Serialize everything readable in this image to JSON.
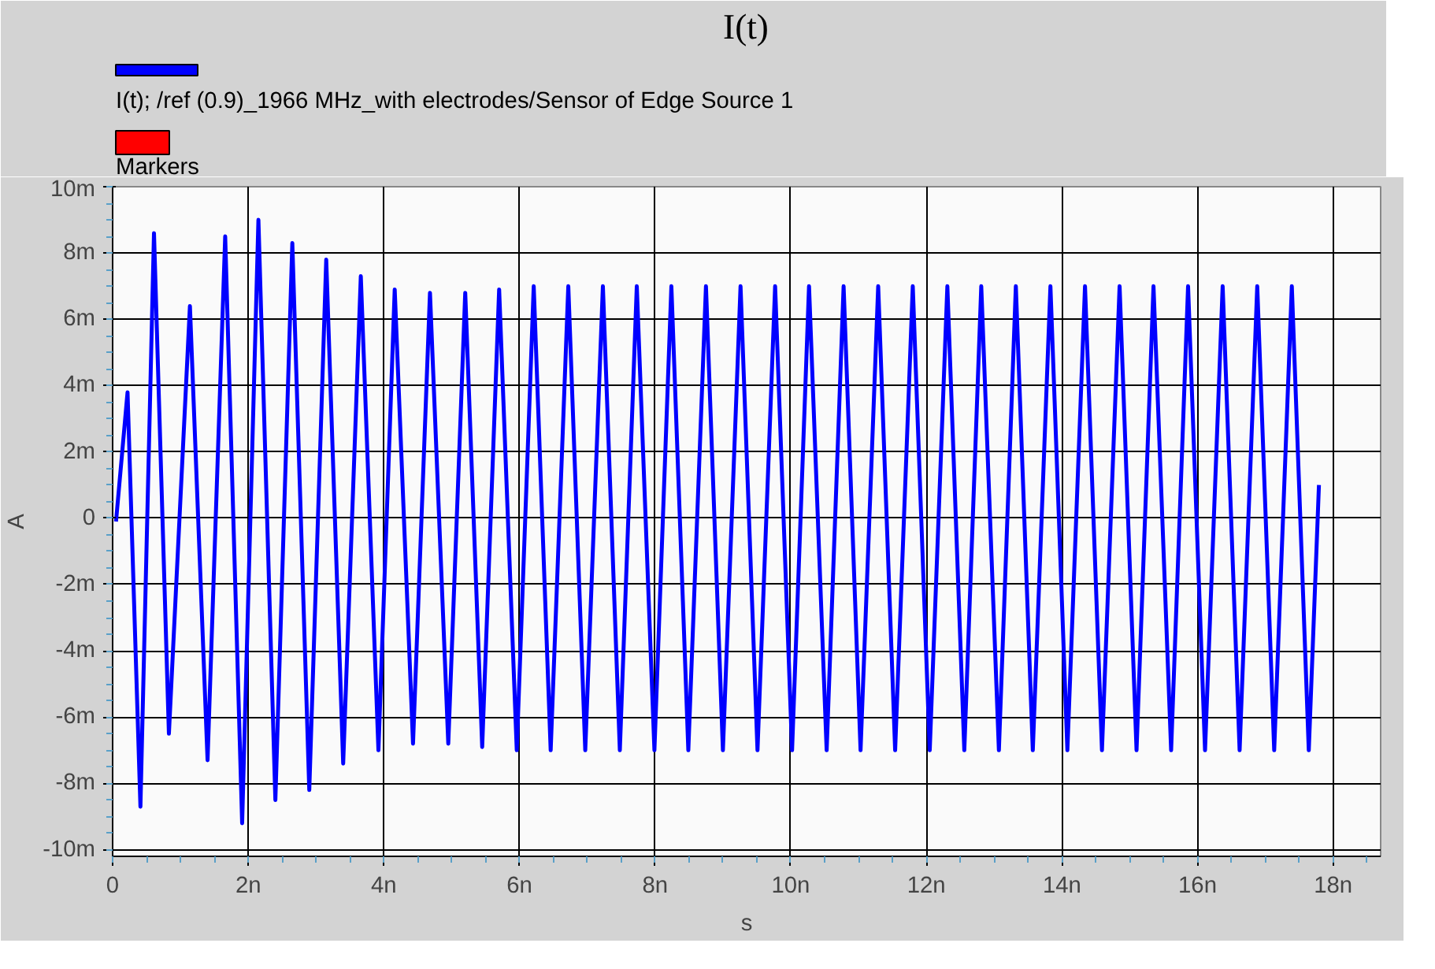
{
  "chart_data": {
    "type": "line",
    "title": "I(t)",
    "xlabel": "s",
    "ylabel": "A",
    "x": [
      0.05,
      0.22,
      0.41,
      0.61,
      0.83,
      1.14,
      1.4,
      1.66,
      1.91,
      2.15,
      2.4,
      2.65,
      2.9,
      3.15,
      3.4,
      3.66,
      3.92,
      4.16,
      4.43,
      4.68,
      4.95,
      5.2,
      5.45,
      5.7,
      5.96,
      6.21,
      6.46,
      6.72,
      6.97,
      7.23,
      7.48,
      7.73,
      7.99,
      8.24,
      8.49,
      8.75,
      9.0,
      9.26,
      9.51,
      9.77,
      10.02,
      10.27,
      10.53,
      10.78,
      11.03,
      11.29,
      11.54,
      11.8,
      12.05,
      12.31,
      12.56,
      12.81,
      13.07,
      13.32,
      13.57,
      13.83,
      14.08,
      14.34,
      14.59,
      14.85,
      15.1,
      15.35,
      15.61,
      15.86,
      16.11,
      16.37,
      16.62,
      16.88,
      17.13,
      17.39,
      17.64,
      17.79
    ],
    "series": [
      {
        "name": "I(t); /ref (0.9)_1966 MHz_with electrodes/Sensor of Edge Source 1",
        "color": "#0000ff",
        "values": [
          -0.1,
          3.8,
          -8.7,
          8.6,
          -6.5,
          6.4,
          -7.3,
          8.5,
          -9.2,
          9.0,
          -8.5,
          8.3,
          -8.2,
          7.8,
          -7.4,
          7.3,
          -7.0,
          6.9,
          -6.8,
          6.8,
          -6.8,
          6.8,
          -6.9,
          6.9,
          -7.0,
          7.0,
          -7.0,
          7.0,
          -7.0,
          7.0,
          -7.0,
          7.0,
          -7.0,
          7.0,
          -7.0,
          7.0,
          -7.0,
          7.0,
          -7.0,
          7.0,
          -7.0,
          7.0,
          -7.0,
          7.0,
          -7.0,
          7.0,
          -7.0,
          7.0,
          -7.0,
          7.0,
          -7.0,
          7.0,
          -7.0,
          7.0,
          -7.0,
          7.0,
          -7.0,
          7.0,
          -7.0,
          7.0,
          -7.0,
          7.0,
          -7.0,
          7.0,
          -7.0,
          7.0,
          -7.0,
          7.0,
          -7.0,
          7.0,
          -7.0,
          1.0
        ]
      },
      {
        "name": "Markers",
        "color": "#ff0000",
        "values": [
          null,
          null,
          null,
          null,
          null,
          null,
          null,
          null,
          null,
          null,
          null,
          null,
          null,
          null,
          null,
          null,
          null,
          null,
          null,
          null,
          null,
          null,
          null,
          null,
          null,
          null,
          null,
          null,
          null,
          null,
          null,
          null,
          null,
          null,
          null,
          null,
          null,
          null,
          null,
          null,
          null,
          null,
          null,
          null,
          null,
          null,
          null,
          null,
          null,
          null,
          null,
          null,
          null,
          null,
          null,
          null,
          null,
          null,
          null,
          null,
          null,
          null,
          null,
          null,
          null,
          null,
          null,
          null,
          null,
          null,
          null,
          null
        ]
      }
    ],
    "xlim": [
      0,
      18.7
    ],
    "xticks": [
      0,
      {
        "value": 2,
        "label": "2n"
      },
      {
        "value": 4,
        "label": "4n"
      },
      {
        "value": 6,
        "label": "6n"
      },
      {
        "value": 8,
        "label": "8n"
      },
      {
        "value": 10,
        "label": "10n"
      },
      {
        "value": 12,
        "label": "12n"
      },
      {
        "value": 14,
        "label": "14n"
      },
      {
        "value": 16,
        "label": "16n"
      },
      {
        "value": 18,
        "label": "18n"
      }
    ],
    "ylim": [
      -10.2,
      10
    ],
    "yticks": [
      {
        "value": -10,
        "label": "-10m"
      },
      {
        "value": -8,
        "label": "-8m"
      },
      {
        "value": -6,
        "label": "-6m"
      },
      {
        "value": -4,
        "label": "-4m"
      },
      {
        "value": -2,
        "label": "-2m"
      },
      0,
      {
        "value": 2,
        "label": "2m"
      },
      {
        "value": 4,
        "label": "4m"
      },
      {
        "value": 6,
        "label": "6m"
      },
      {
        "value": 8,
        "label": "8m"
      },
      {
        "value": 10,
        "label": "10m"
      }
    ],
    "grid": true,
    "legend": "top left",
    "marker": "none",
    "line_style": "solid"
  }
}
